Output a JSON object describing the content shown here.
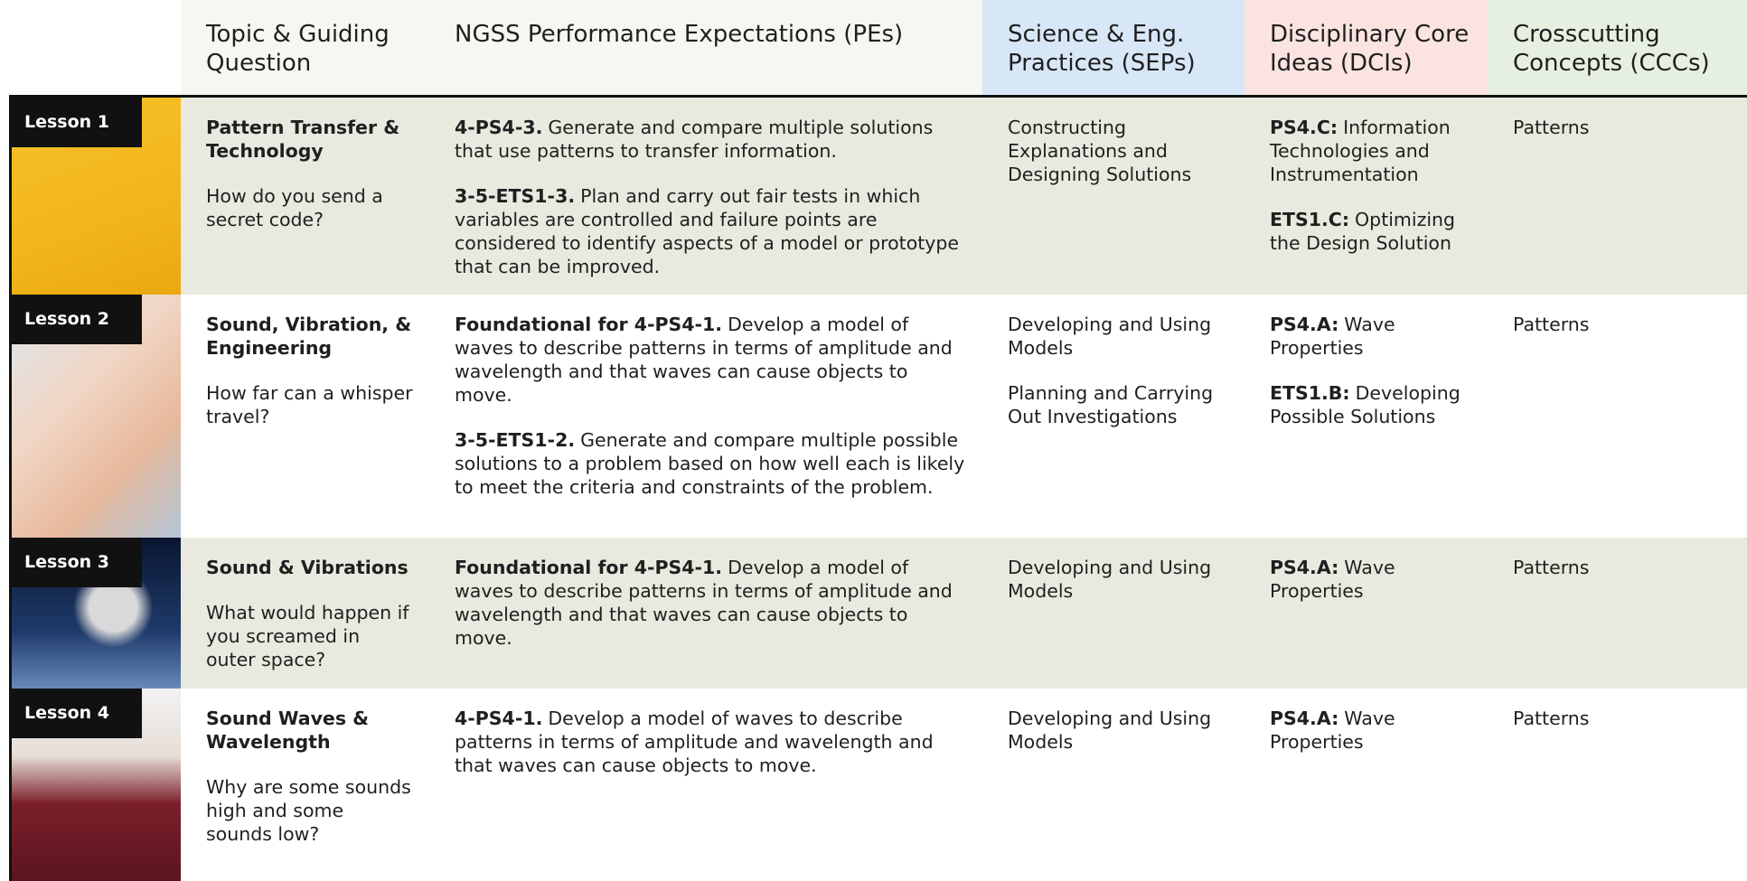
{
  "header": {
    "columns": [
      "Topic & Guiding Question",
      "NGSS Performance Expectations (PEs)",
      "Science & Eng. Practices (SEPs)",
      "Disciplinary Core Ideas (DCIs)",
      "Crosscutting Concepts (CCCs)"
    ]
  },
  "rows": [
    {
      "lesson": "Lesson 1",
      "topic": "Pattern Transfer & Technology",
      "question": "How do you send a secret code?",
      "pes": [
        {
          "code": "4-PS4-3.",
          "text": "Generate and compare multiple solutions that use patterns to transfer information."
        },
        {
          "code": "3-5-ETS1-3.",
          "text": "Plan and carry out fair tests in which variables are controlled and failure points are considered to identify aspects of a model or prototype that can be improved."
        }
      ],
      "seps": [
        "Constructing Explanations and Designing Solutions"
      ],
      "dcis": [
        {
          "code": "PS4.C:",
          "text": "Information Technologies and Instrumentation"
        },
        {
          "code": "ETS1.C:",
          "text": "Optimizing the Design Solution"
        }
      ],
      "ccc": "Patterns"
    },
    {
      "lesson": "Lesson 2",
      "topic": "Sound, Vibration, & Engineering",
      "question": "How far can a whisper travel?",
      "pes": [
        {
          "code": "Foundational for 4-PS4-1.",
          "text": "Develop a model of waves to describe patterns in terms of amplitude and wavelength and that waves can cause objects to move."
        },
        {
          "code": "3-5-ETS1-2.",
          "text": "Generate and compare multiple possible solutions to a problem based on how well each is likely to meet the criteria and constraints of the problem."
        }
      ],
      "seps": [
        "Developing and Using Models",
        "Planning and Carrying Out Investigations"
      ],
      "dcis": [
        {
          "code": "PS4.A:",
          "text": "Wave Properties"
        },
        {
          "code": "ETS1.B:",
          "text": "Developing Possible Solutions"
        }
      ],
      "ccc": "Patterns"
    },
    {
      "lesson": "Lesson 3",
      "topic": "Sound & Vibrations",
      "question": "What would happen if you screamed in outer space?",
      "pes": [
        {
          "code": "Foundational for 4-PS4-1.",
          "text": "Develop a model of waves to describe patterns in terms of amplitude and wavelength and that waves can cause objects to move."
        }
      ],
      "seps": [
        "Developing and Using Models"
      ],
      "dcis": [
        {
          "code": "PS4.A:",
          "text": "Wave Properties"
        }
      ],
      "ccc": "Patterns"
    },
    {
      "lesson": "Lesson 4",
      "topic": "Sound Waves & Wavelength",
      "question": "Why are some sounds high and some sounds low?",
      "pes": [
        {
          "code": "4-PS4-1.",
          "text": "Develop a model of waves to describe patterns in terms of amplitude and wavelength and that waves can cause objects to move."
        }
      ],
      "seps": [
        "Developing and Using Models"
      ],
      "dcis": [
        {
          "code": "PS4.A:",
          "text": "Wave Properties"
        }
      ],
      "ccc": "Patterns"
    }
  ]
}
